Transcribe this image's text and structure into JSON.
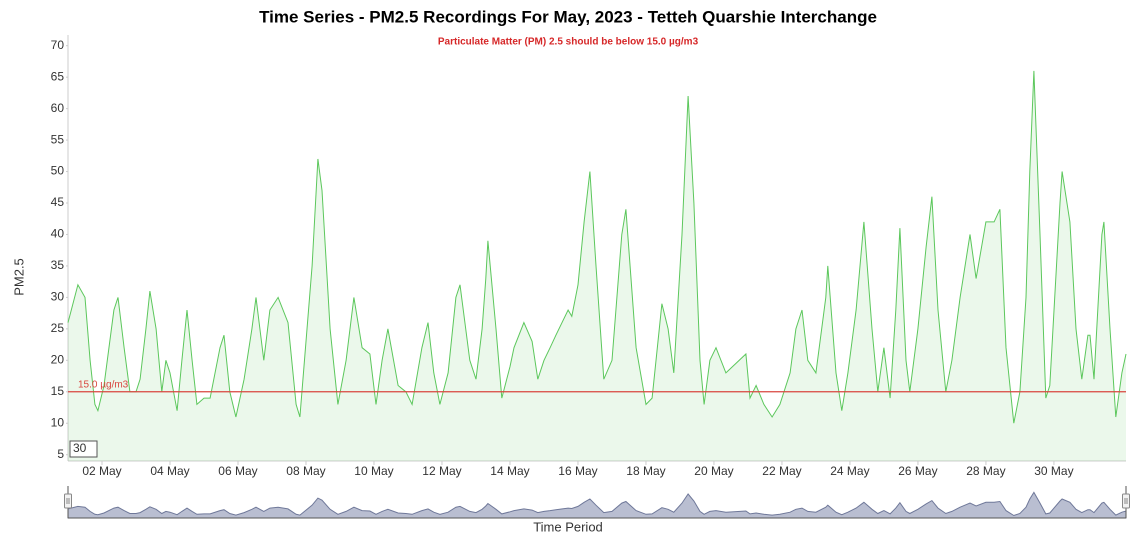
{
  "chart_data": {
    "type": "area",
    "title": "Time Series - PM2.5 Recordings For May, 2023 - Tetteh Quarshie Interchange",
    "subtitle": "Particulate Matter (PM) 2.5 should be below 15.0 µg/m3",
    "y_label": "PM2.5",
    "x_label": "Time Period",
    "input_value": "30",
    "color": "#5cc75c",
    "threshold": {
      "value": 15,
      "label": "15.0 µg/m3"
    },
    "threshold_color": "#d9463f",
    "grid": false,
    "xlim": [
      1,
      32.12
    ],
    "xticks": [
      {
        "value": 2,
        "label": "02 May"
      },
      {
        "value": 4,
        "label": "04 May"
      },
      {
        "value": 6,
        "label": "06 May"
      },
      {
        "value": 8,
        "label": "08 May"
      },
      {
        "value": 10,
        "label": "10 May"
      },
      {
        "value": 12,
        "label": "12 May"
      },
      {
        "value": 14,
        "label": "14 May"
      },
      {
        "value": 16,
        "label": "16 May"
      },
      {
        "value": 18,
        "label": "18 May"
      },
      {
        "value": 20,
        "label": "20 May"
      },
      {
        "value": 22,
        "label": "22 May"
      },
      {
        "value": 24,
        "label": "24 May"
      },
      {
        "value": 26,
        "label": "26 May"
      },
      {
        "value": 28,
        "label": "28 May"
      },
      {
        "value": 30,
        "label": "30 May"
      }
    ],
    "ylim": [
      4,
      71.7
    ],
    "yticks": [
      5,
      10,
      15,
      20,
      25,
      30,
      35,
      40,
      45,
      50,
      55,
      60,
      65,
      70
    ],
    "x": [
      1.0,
      1.29,
      1.5,
      1.65,
      1.79,
      1.88,
      2.06,
      2.35,
      2.47,
      2.65,
      2.82,
      3.0,
      3.12,
      3.29,
      3.41,
      3.59,
      3.76,
      3.88,
      4.0,
      4.21,
      4.35,
      4.5,
      4.65,
      4.79,
      5.0,
      5.18,
      5.47,
      5.59,
      5.76,
      5.94,
      6.18,
      6.41,
      6.53,
      6.76,
      6.94,
      7.18,
      7.47,
      7.71,
      7.82,
      8.18,
      8.35,
      8.47,
      8.71,
      8.94,
      9.18,
      9.41,
      9.65,
      9.88,
      10.06,
      10.24,
      10.41,
      10.71,
      10.94,
      11.12,
      11.41,
      11.59,
      11.76,
      11.94,
      12.18,
      12.41,
      12.53,
      12.82,
      13.0,
      13.18,
      13.29,
      13.35,
      13.59,
      13.76,
      14.0,
      14.12,
      14.41,
      14.65,
      14.82,
      15.0,
      15.18,
      15.35,
      15.71,
      15.82,
      16.0,
      16.18,
      16.35,
      16.53,
      16.76,
      17.0,
      17.29,
      17.41,
      17.71,
      18.0,
      18.18,
      18.47,
      18.65,
      18.82,
      19.06,
      19.24,
      19.41,
      19.59,
      19.71,
      19.88,
      20.06,
      20.35,
      20.94,
      21.06,
      21.24,
      21.47,
      21.71,
      21.94,
      22.24,
      22.41,
      22.59,
      22.76,
      23.0,
      23.29,
      23.35,
      23.59,
      23.76,
      23.94,
      24.18,
      24.41,
      24.65,
      24.82,
      25.0,
      25.18,
      25.35,
      25.47,
      25.65,
      25.76,
      26.0,
      26.24,
      26.41,
      26.59,
      26.82,
      27.0,
      27.12,
      27.24,
      27.53,
      27.71,
      28.0,
      28.24,
      28.41,
      28.59,
      28.82,
      29.0,
      29.18,
      29.29,
      29.41,
      29.59,
      29.76,
      29.88,
      30.18,
      30.24,
      30.47,
      30.65,
      30.82,
      31.0,
      31.06,
      31.18,
      31.41,
      31.47,
      31.65,
      31.82,
      32.0,
      32.12
    ],
    "values": [
      26,
      32,
      30,
      20,
      13,
      12,
      16,
      28,
      30,
      22,
      15,
      15,
      17,
      25,
      31,
      25,
      15,
      20,
      18,
      12,
      20,
      28,
      20,
      13,
      14,
      14,
      22,
      24,
      15,
      11,
      17,
      25,
      30,
      20,
      28,
      30,
      26,
      13,
      11,
      35,
      52,
      47,
      25,
      13,
      20,
      30,
      22,
      21,
      13,
      20,
      25,
      16,
      15,
      13,
      22,
      26,
      18,
      13,
      18,
      30,
      32,
      20,
      17,
      25,
      33,
      39,
      25,
      14,
      19,
      22,
      26,
      23,
      17,
      20,
      22,
      24,
      28,
      27,
      32,
      42,
      50,
      35,
      17,
      20,
      40,
      44,
      22,
      13,
      14,
      29,
      25,
      18,
      40,
      62,
      45,
      20,
      13,
      20,
      22,
      18,
      21,
      14,
      16,
      13,
      11,
      13,
      18,
      25,
      28,
      20,
      18,
      30,
      35,
      18,
      12,
      18,
      28,
      42,
      25,
      15,
      22,
      14,
      28,
      41,
      20,
      15,
      25,
      38,
      46,
      28,
      15,
      20,
      25,
      30,
      40,
      33,
      42,
      42,
      44,
      22,
      10,
      15,
      30,
      50,
      66,
      40,
      14,
      16,
      45,
      50,
      42,
      25,
      17,
      24,
      24,
      17,
      40,
      42,
      25,
      11,
      18,
      21
    ]
  }
}
